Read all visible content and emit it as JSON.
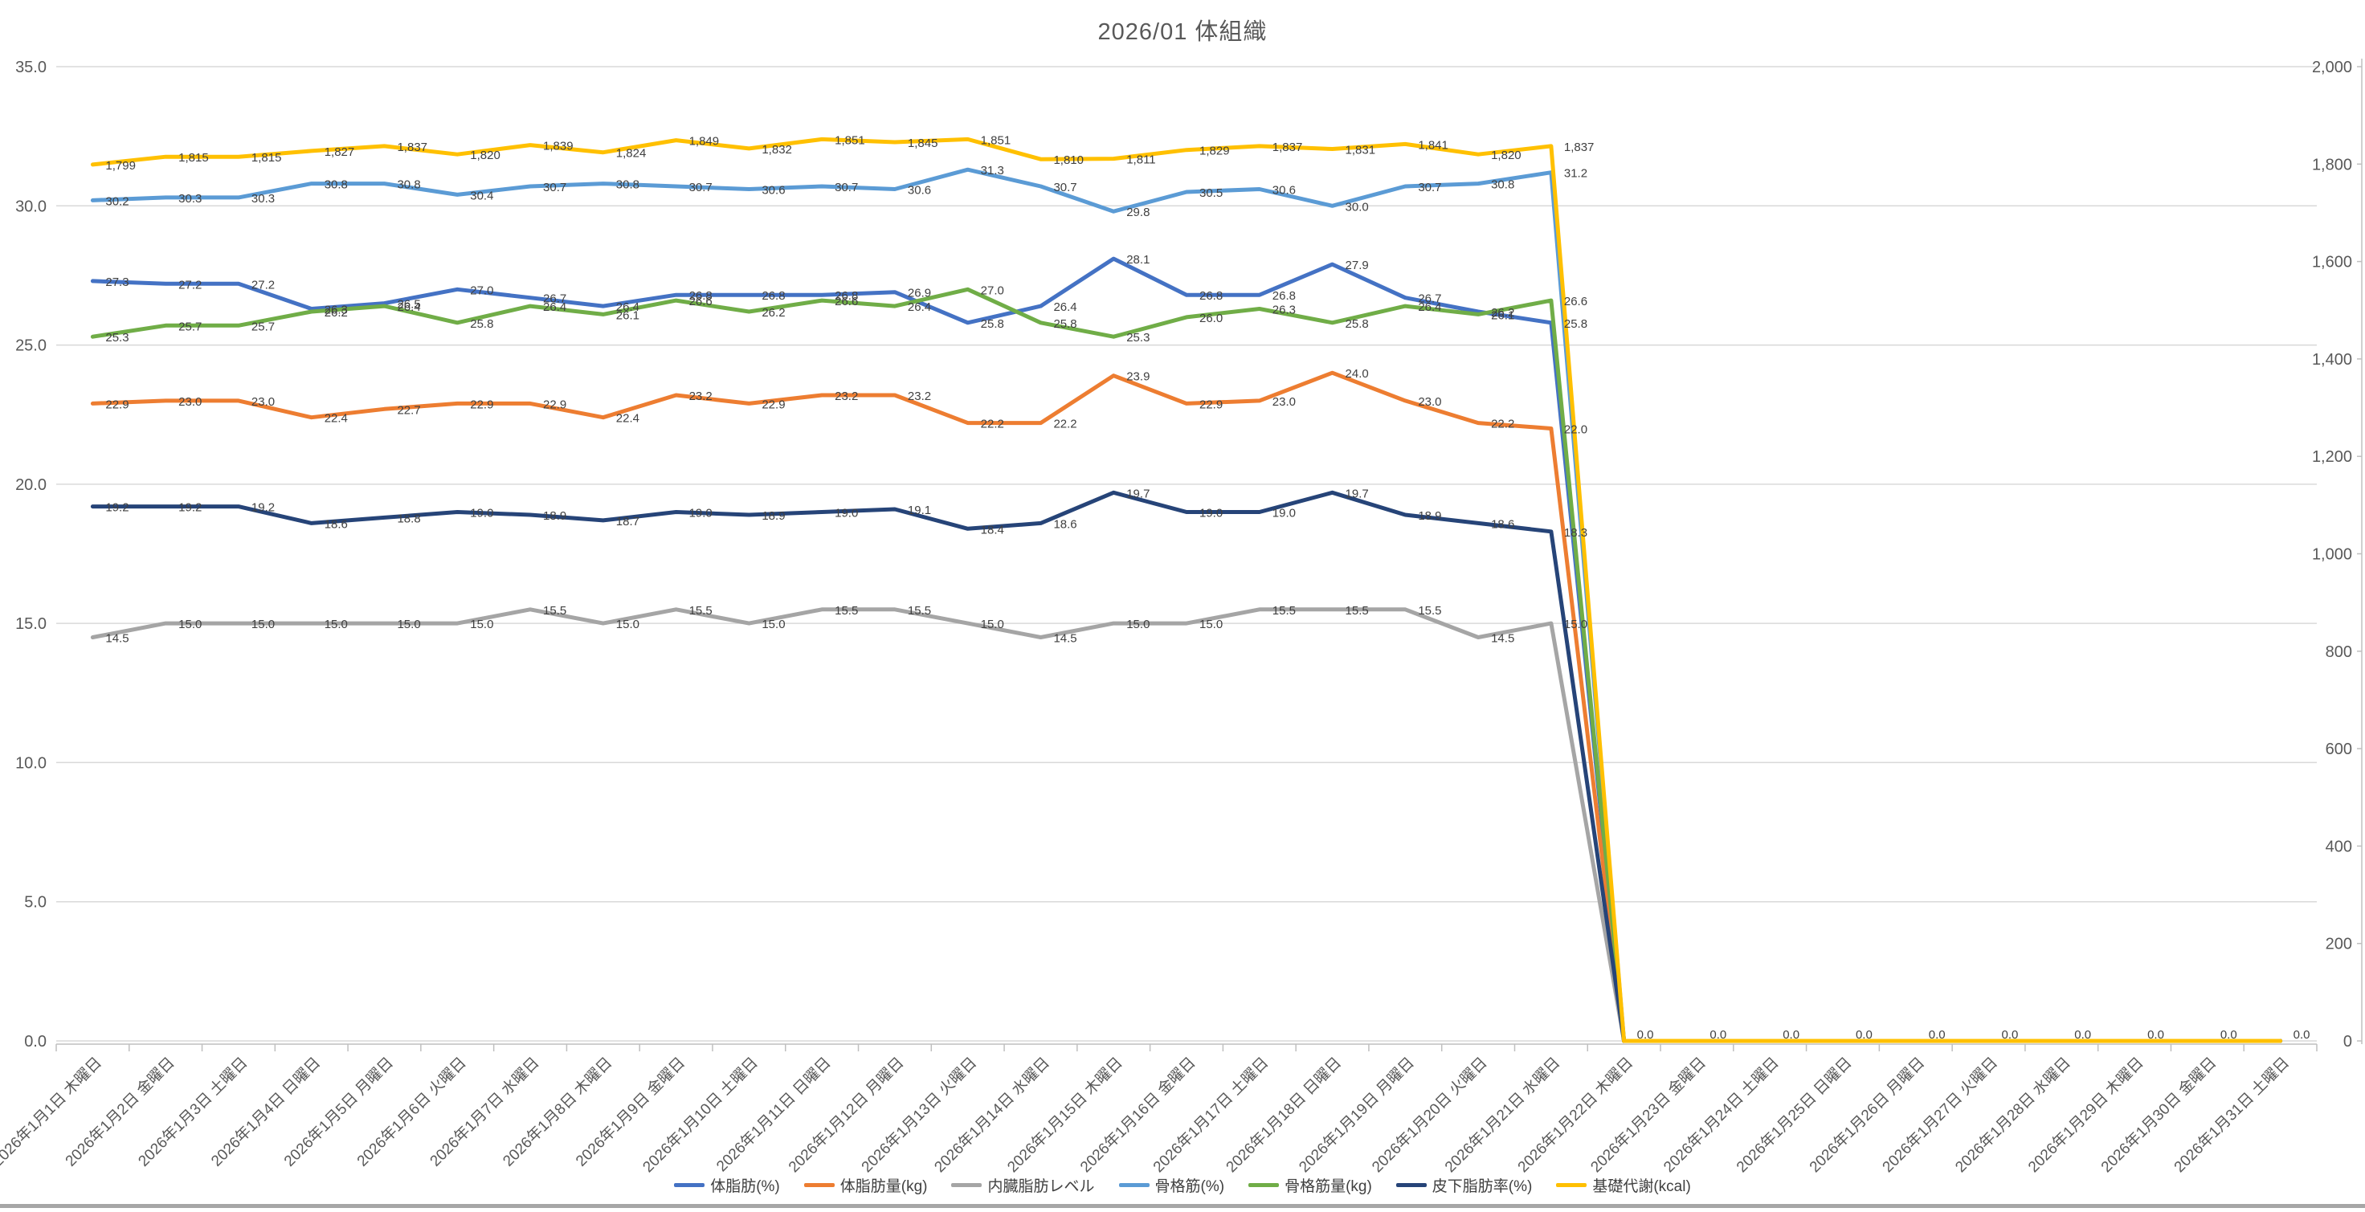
{
  "title": "2026/01 体組織",
  "chart_data": {
    "type": "line",
    "title": "2026/01 体組織",
    "grid": "horizontal",
    "legend_position": "bottom",
    "x": [
      "2026年1月1日 木曜日",
      "2026年1月2日 金曜日",
      "2026年1月3日 土曜日",
      "2026年1月4日 日曜日",
      "2026年1月5日 月曜日",
      "2026年1月6日 火曜日",
      "2026年1月7日 水曜日",
      "2026年1月8日 木曜日",
      "2026年1月9日 金曜日",
      "2026年1月10日 土曜日",
      "2026年1月11日 日曜日",
      "2026年1月12日 月曜日",
      "2026年1月13日 火曜日",
      "2026年1月14日 水曜日",
      "2026年1月15日 木曜日",
      "2026年1月16日 金曜日",
      "2026年1月17日 土曜日",
      "2026年1月18日 日曜日",
      "2026年1月19日 月曜日",
      "2026年1月20日 火曜日",
      "2026年1月21日 水曜日",
      "2026年1月22日 木曜日",
      "2026年1月23日 金曜日",
      "2026年1月24日 土曜日",
      "2026年1月25日 日曜日",
      "2026年1月26日 月曜日",
      "2026年1月27日 火曜日",
      "2026年1月28日 水曜日",
      "2026年1月29日 木曜日",
      "2026年1月30日 金曜日",
      "2026年1月31日 土曜日"
    ],
    "days_with_data": 21,
    "zero_fill_label": "0.0",
    "left_axis": {
      "min": 0,
      "max": 35,
      "step": 5,
      "ticks": [
        "35.0",
        "30.0",
        "25.0",
        "20.0",
        "15.0",
        "10.0",
        "5.0",
        "0.0"
      ]
    },
    "right_axis": {
      "min": 0,
      "max": 2000,
      "step": 200,
      "ticks": [
        "2,000",
        "1,800",
        "1,600",
        "1,400",
        "1,200",
        "1,000",
        "800",
        "600",
        "400",
        "200",
        "0"
      ]
    },
    "series": [
      {
        "name": "体脂肪(%)",
        "color": "#4472C4",
        "axis": "left",
        "format": "decimal1",
        "values": [
          27.3,
          27.2,
          27.2,
          26.3,
          26.5,
          27.0,
          26.7,
          26.4,
          26.8,
          26.8,
          26.8,
          26.9,
          25.8,
          26.4,
          28.1,
          26.8,
          26.8,
          27.9,
          26.7,
          26.2,
          25.8
        ]
      },
      {
        "name": "体脂肪量(kg)",
        "color": "#ED7D31",
        "axis": "left",
        "format": "decimal1",
        "values": [
          22.9,
          23.0,
          23.0,
          22.4,
          22.7,
          22.9,
          22.9,
          22.4,
          23.2,
          22.9,
          23.2,
          23.2,
          22.2,
          22.2,
          23.9,
          22.9,
          23.0,
          24.0,
          23.0,
          22.2,
          22.0
        ]
      },
      {
        "name": "内臓脂肪レベル",
        "color": "#A5A5A5",
        "axis": "left",
        "format": "decimal1",
        "values": [
          14.5,
          15.0,
          15.0,
          15.0,
          15.0,
          15.0,
          15.5,
          15.0,
          15.5,
          15.0,
          15.5,
          15.5,
          15.0,
          14.5,
          15.0,
          15.0,
          15.5,
          15.5,
          15.5,
          14.5,
          15.0
        ]
      },
      {
        "name": "骨格筋(%)",
        "color": "#5B9BD5",
        "axis": "left",
        "format": "decimal1",
        "values": [
          30.2,
          30.3,
          30.3,
          30.8,
          30.8,
          30.4,
          30.7,
          30.8,
          30.7,
          30.6,
          30.7,
          30.6,
          31.3,
          30.7,
          29.8,
          30.5,
          30.6,
          30.0,
          30.7,
          30.8,
          31.2
        ]
      },
      {
        "name": "骨格筋量(kg)",
        "color": "#70AD47",
        "axis": "left",
        "format": "decimal1",
        "values": [
          25.3,
          25.7,
          25.7,
          26.2,
          26.4,
          25.8,
          26.4,
          26.1,
          26.6,
          26.2,
          26.6,
          26.4,
          27.0,
          25.8,
          25.3,
          26.0,
          26.3,
          25.8,
          26.4,
          26.1,
          26.6
        ]
      },
      {
        "name": "皮下脂肪率(%)",
        "color": "#264478",
        "axis": "left",
        "format": "decimal1",
        "values": [
          19.2,
          19.2,
          19.2,
          18.6,
          18.8,
          19.0,
          18.9,
          18.7,
          19.0,
          18.9,
          19.0,
          19.1,
          18.4,
          18.6,
          19.7,
          19.0,
          19.0,
          19.7,
          18.9,
          18.6,
          18.3
        ]
      },
      {
        "name": "基礎代謝(kcal)",
        "color": "#FFC000",
        "axis": "right",
        "format": "thousands",
        "values": [
          1799,
          1815,
          1815,
          1827,
          1837,
          1820,
          1839,
          1824,
          1849,
          1832,
          1851,
          1845,
          1851,
          1810,
          1811,
          1829,
          1837,
          1831,
          1841,
          1820,
          1837
        ]
      }
    ],
    "colors": {
      "gridline": "#D9D9D9",
      "axis_line": "#BFBFBF",
      "axis_text": "#595959",
      "data_label": "#404040",
      "title_text": "#595959"
    }
  }
}
